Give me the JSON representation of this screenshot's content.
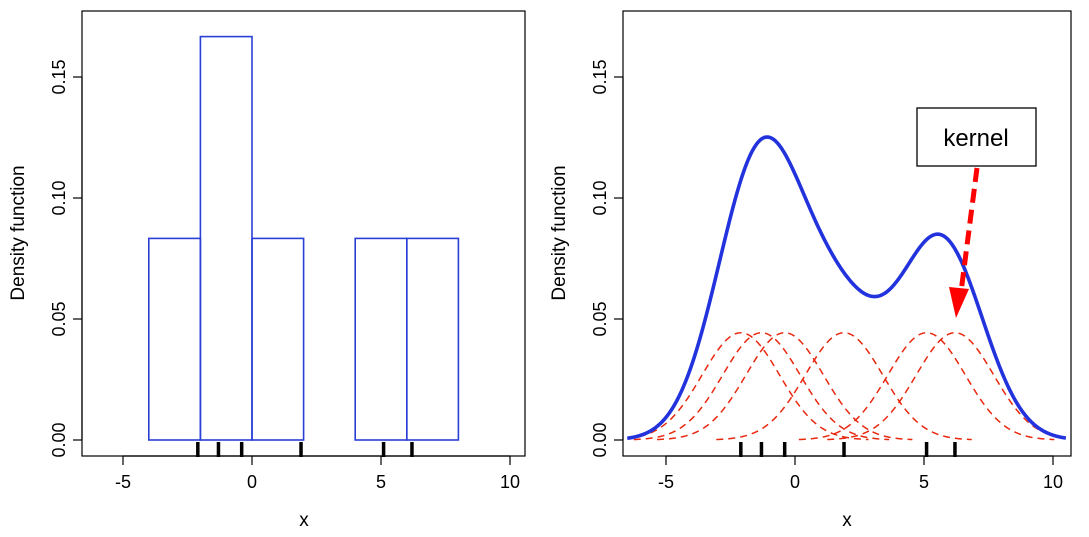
{
  "chart_data": [
    {
      "type": "histogram",
      "title": "",
      "xlabel": "x",
      "ylabel": "Density function",
      "xlim": [
        -6.5,
        10.5
      ],
      "ylim": [
        0,
        0.17
      ],
      "xticks": [
        -5,
        0,
        5,
        10
      ],
      "xtick_labels": [
        "-5",
        "0",
        "5",
        "10"
      ],
      "yticks": [
        0.0,
        0.05,
        0.1,
        0.15
      ],
      "ytick_labels": [
        "0.00",
        "0.05",
        "0.10",
        "0.15"
      ],
      "bins": [
        {
          "x0": -4,
          "x1": -2,
          "density": 0.0833
        },
        {
          "x0": -2,
          "x1": 0,
          "density": 0.1667
        },
        {
          "x0": 0,
          "x1": 2,
          "density": 0.0833
        },
        {
          "x0": 2,
          "x1": 4,
          "density": 0.0
        },
        {
          "x0": 4,
          "x1": 6,
          "density": 0.0833
        },
        {
          "x0": 6,
          "x1": 8,
          "density": 0.0833
        }
      ],
      "rug": [
        -2.1,
        -1.3,
        -0.4,
        1.9,
        5.1,
        6.2
      ],
      "colors": {
        "bars": "#2a3fd6",
        "rug": "#000000"
      }
    },
    {
      "type": "line",
      "title": "",
      "xlabel": "x",
      "ylabel": "Density function",
      "xlim": [
        -6.5,
        10.5
      ],
      "ylim": [
        0,
        0.17
      ],
      "xticks": [
        -5,
        0,
        5,
        10
      ],
      "xtick_labels": [
        "-5",
        "0",
        "5",
        "10"
      ],
      "yticks": [
        0.0,
        0.05,
        0.1,
        0.15
      ],
      "ytick_labels": [
        "0.00",
        "0.05",
        "0.10",
        "0.15"
      ],
      "data_points": [
        -2.1,
        -1.3,
        -0.4,
        1.9,
        5.1,
        6.2
      ],
      "kernel": {
        "type": "gaussian",
        "bandwidth": 1.5
      },
      "series": [
        {
          "name": "kernel density estimate",
          "style": "solid",
          "color": "#2233dd"
        },
        {
          "name": "individual kernels",
          "style": "dashed",
          "color": "#e8280f"
        }
      ],
      "annotation": {
        "text": "kernel",
        "arrow_color": "#ff0000"
      },
      "colors": {
        "kde": "#2233dd",
        "kernel": "#e8280f",
        "rug": "#000000"
      }
    }
  ]
}
